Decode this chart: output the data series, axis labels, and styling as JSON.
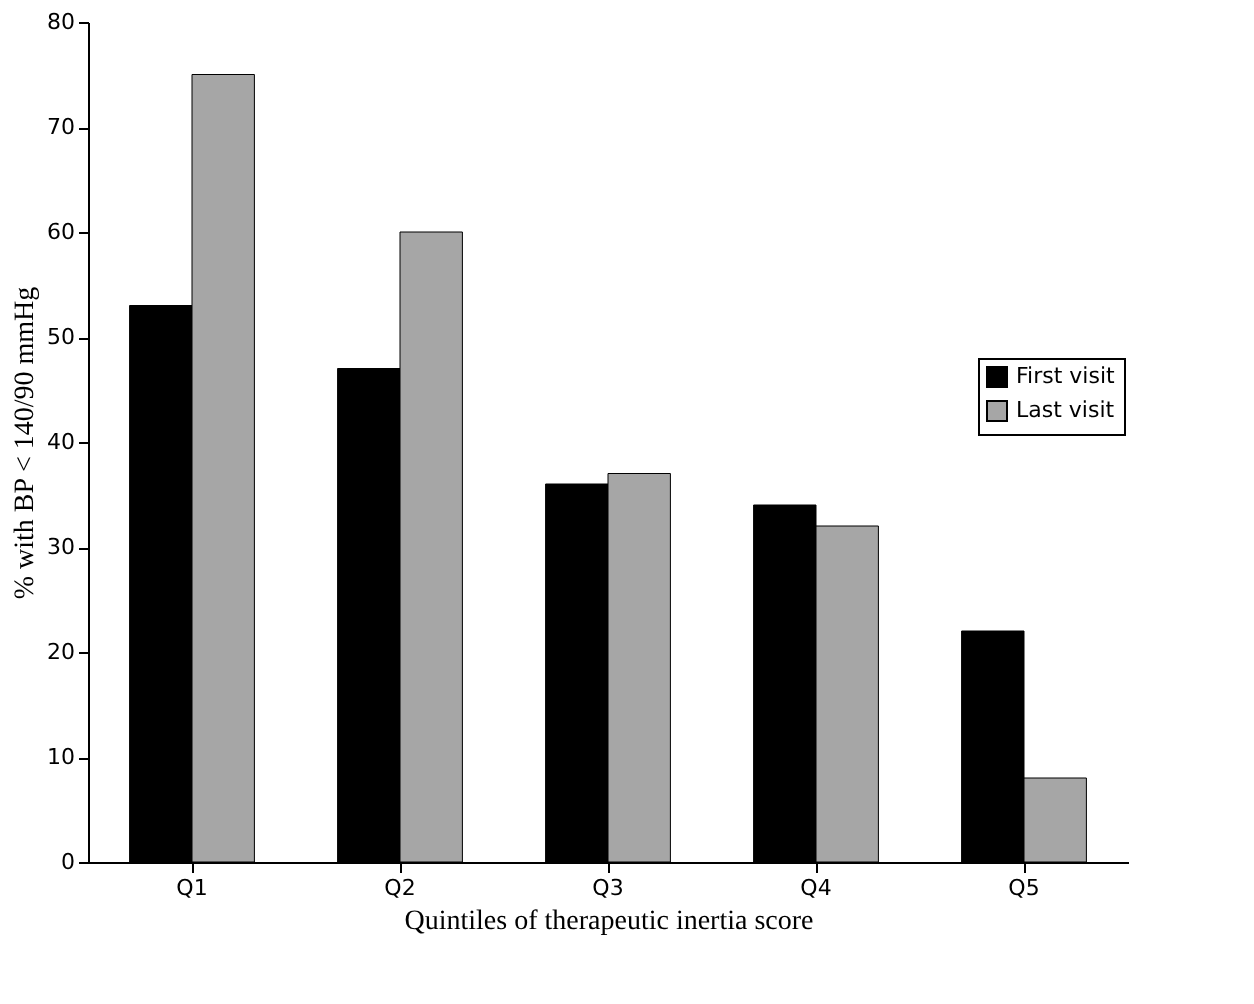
{
  "chart_data": {
    "type": "bar",
    "xlabel": "Quintiles of therapeutic inertia score",
    "ylabel": "% with BP < 140/90 mmHg",
    "categories": [
      "Q1",
      "Q2",
      "Q3",
      "Q4",
      "Q5"
    ],
    "series": [
      {
        "name": "First visit",
        "color": "#000000",
        "values": [
          53,
          47,
          36,
          34,
          22
        ]
      },
      {
        "name": "Last visit",
        "color": "#a6a6a6",
        "values": [
          75,
          60,
          37,
          32,
          8
        ]
      }
    ],
    "ylim": [
      0,
      80
    ],
    "yticks": [
      0,
      10,
      20,
      30,
      40,
      50,
      60,
      70,
      80
    ],
    "grid": false,
    "legend": "right"
  }
}
